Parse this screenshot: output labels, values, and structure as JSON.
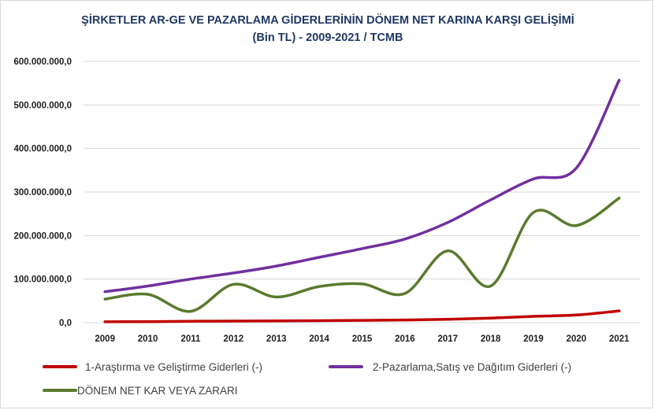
{
  "chart_data": {
    "type": "line",
    "title": "ŞİRKETLER AR-GE VE PAZARLAMA GİDERLERİNİN DÖNEM NET KARINA KARŞI GELİŞİMİ",
    "subtitle": "(Bin TL) - 2009-2021 / TCMB",
    "xlabel": "",
    "ylabel": "",
    "ylim": [
      0,
      600000000
    ],
    "y_ticks": [
      0,
      100000000,
      200000000,
      300000000,
      400000000,
      500000000,
      600000000
    ],
    "y_tick_labels": [
      "0,0",
      "100.000.000,0",
      "200.000.000,0",
      "300.000.000,0",
      "400.000.000,0",
      "500.000.000,0",
      "600.000.000,0"
    ],
    "categories": [
      "2009",
      "2010",
      "2011",
      "2012",
      "2013",
      "2014",
      "2015",
      "2016",
      "2017",
      "2018",
      "2019",
      "2020",
      "2021"
    ],
    "grid": true,
    "legend_position": "bottom",
    "series": [
      {
        "name": "1-Araştırma ve Geliştirme Giderleri (-)",
        "color": "#c00000",
        "values": [
          2000000,
          2300000,
          3200000,
          3600000,
          4000000,
          4600000,
          5300000,
          6100000,
          7800000,
          10500000,
          14500000,
          17500000,
          27000000
        ]
      },
      {
        "name": "2-Pazarlama,Satış ve Dağıtım Giderleri (-)",
        "color": "#7030a0",
        "values": [
          71000000,
          84000000,
          100000000,
          114000000,
          130000000,
          150000000,
          170000000,
          192000000,
          230000000,
          282000000,
          330000000,
          355000000,
          557000000
        ]
      },
      {
        "name": "DÖNEM NET KAR VEYA ZARARI",
        "color": "#5a7a2e",
        "values": [
          54000000,
          65000000,
          26000000,
          88000000,
          59000000,
          83000000,
          89000000,
          67000000,
          165000000,
          84000000,
          253000000,
          223000000,
          286000000
        ]
      }
    ]
  }
}
